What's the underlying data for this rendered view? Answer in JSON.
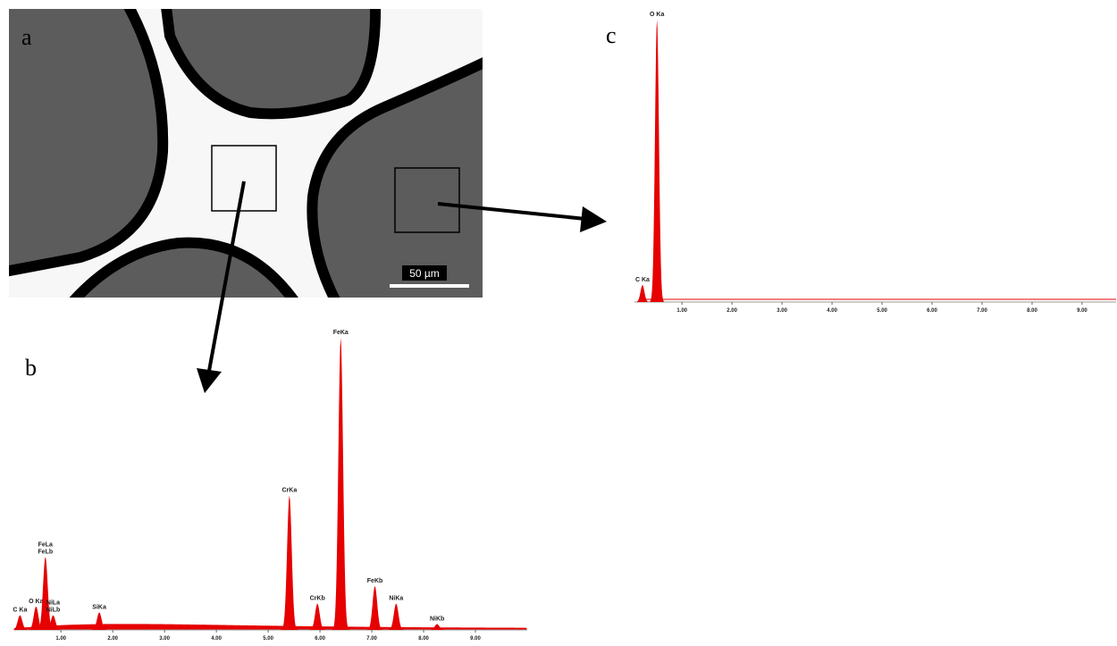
{
  "panel_labels": [
    "a",
    "b",
    "c"
  ],
  "scale_bar": "50 µm",
  "chart_data": [
    {
      "type": "spectrum",
      "color": "#e60000",
      "xlim": [
        0.1,
        10
      ],
      "ylim": [
        0,
        100
      ],
      "xticks": [
        {
          "value": 1,
          "label": "1.00"
        },
        {
          "value": 2,
          "label": "2.00"
        },
        {
          "value": 3,
          "label": "3.00"
        },
        {
          "value": 4,
          "label": "4.00"
        },
        {
          "value": 5,
          "label": "5.00"
        },
        {
          "value": 6,
          "label": "6.00"
        },
        {
          "value": 7,
          "label": "7.00"
        },
        {
          "value": 8,
          "label": "8.00"
        },
        {
          "value": 9,
          "label": "9.00"
        }
      ],
      "peaks": [
        {
          "labels": [
            "C Ka"
          ],
          "x": 0.21,
          "value": 5
        },
        {
          "labels": [
            "O Ka"
          ],
          "x": 0.52,
          "value": 8
        },
        {
          "labels": [
            "FeLa",
            "FeLb"
          ],
          "x": 0.7,
          "value": 25
        },
        {
          "labels": [
            "NiLa",
            "NiLb"
          ],
          "x": 0.85,
          "value": 5
        },
        {
          "labels": [
            "SiKa"
          ],
          "x": 1.74,
          "value": 6
        },
        {
          "labels": [
            "CrKa"
          ],
          "x": 5.41,
          "value": 46
        },
        {
          "labels": [
            "CrKb"
          ],
          "x": 5.95,
          "value": 9
        },
        {
          "labels": [
            "FeKa"
          ],
          "x": 6.4,
          "value": 100
        },
        {
          "labels": [
            "FeKb"
          ],
          "x": 7.06,
          "value": 15
        },
        {
          "labels": [
            "NiKa"
          ],
          "x": 7.47,
          "value": 9
        },
        {
          "labels": [
            "NiKb"
          ],
          "x": 8.26,
          "value": 2
        }
      ]
    },
    {
      "type": "spectrum",
      "color": "#e60000",
      "xlim": [
        0.05,
        9.68
      ],
      "ylim": [
        0,
        100
      ],
      "xticks": [
        {
          "value": 1,
          "label": "1.00"
        },
        {
          "value": 2,
          "label": "2.00"
        },
        {
          "value": 3,
          "label": "3.00"
        },
        {
          "value": 4,
          "label": "4.00"
        },
        {
          "value": 5,
          "label": "5.00"
        },
        {
          "value": 6,
          "label": "6.00"
        },
        {
          "value": 7,
          "label": "7.00"
        },
        {
          "value": 8,
          "label": "8.00"
        },
        {
          "value": 9,
          "label": "9.00"
        }
      ],
      "peaks": [
        {
          "labels": [
            "C Ka"
          ],
          "x": 0.21,
          "value": 6
        },
        {
          "labels": [
            "O Ka"
          ],
          "x": 0.5,
          "value": 100
        }
      ]
    }
  ]
}
